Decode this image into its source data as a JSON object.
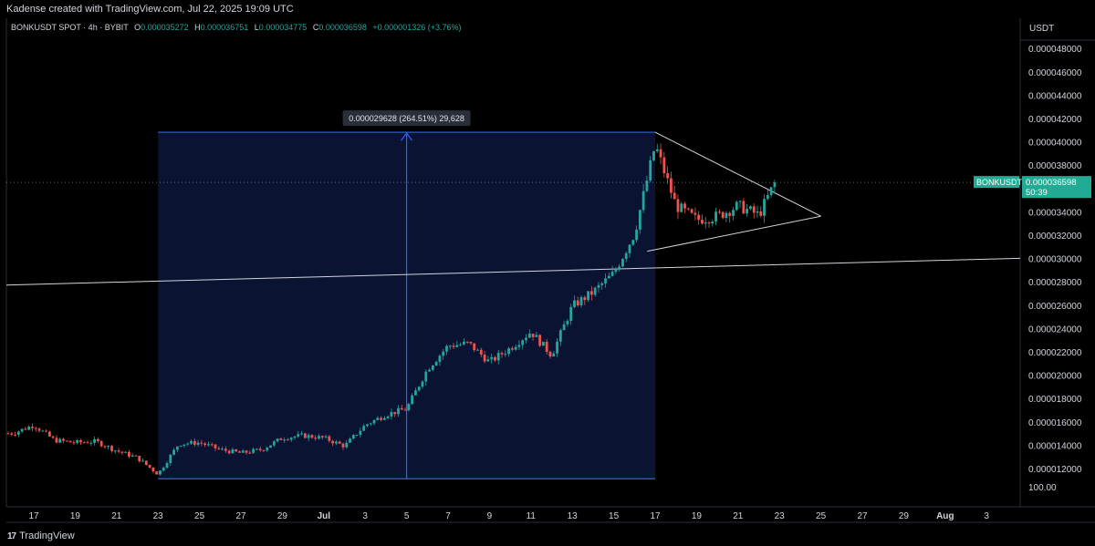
{
  "header": {
    "caption": "Kadense created with TradingView.com, Jul 22, 2025 19:09 UTC",
    "symbol": "BONKUSDT SPOT · 4h · BYBIT",
    "open_label": "O",
    "open": "0.000035272",
    "high_label": "H",
    "high": "0.000036751",
    "low_label": "L",
    "low": "0.000034775",
    "close_label": "C",
    "close": "0.000036598",
    "change": "+0.000001326 (+3.76%)"
  },
  "footer": {
    "brand": "TradingView",
    "brand_mark": "17"
  },
  "colors": {
    "up": "#26a69a",
    "down": "#ef5350",
    "range_fill": "#0b1332",
    "range_line": "#2962ff",
    "badge": "#22ab94"
  },
  "chart_data": {
    "type": "candlestick",
    "currency": "USDT",
    "ylim": [
      1e-05,
      5e-05
    ],
    "y_ticks": [
      "0.000012000",
      "0.000014000",
      "0.000016000",
      "0.000018000",
      "0.000020000",
      "0.000022000",
      "0.000024000",
      "0.000026000",
      "0.000028000",
      "0.000030000",
      "0.000032000",
      "0.000034000",
      "0.000036000",
      "0.000038000",
      "0.000040000",
      "0.000042000",
      "0.000044000",
      "0.000046000",
      "0.000048000"
    ],
    "x_ticks": [
      "17",
      "19",
      "21",
      "23",
      "25",
      "27",
      "29",
      "Jul",
      "3",
      "5",
      "7",
      "9",
      "11",
      "13",
      "15",
      "17",
      "19",
      "21",
      "23",
      "25",
      "27",
      "29",
      "Aug",
      "3"
    ],
    "extra_label": "100.00",
    "last_price": {
      "symbol": "BONKUSDT",
      "price": "0.000036598",
      "countdown": "50:39",
      "value": 3.6598e-05
    },
    "measure": {
      "label": "0.000029628 (264.51%) 29,628",
      "x_start": "Jun 23",
      "x_end": "Jul 17",
      "y_low": 1.12e-05,
      "y_high": 4.09e-05
    },
    "trendline": {
      "from": 2.78e-05,
      "to": 3.01e-05
    },
    "triangle": {
      "upper_from": 4.09e-05,
      "lower_from": 3.07e-05,
      "apex": 3.37e-05
    },
    "price_path": [
      {
        "date": "Jun 16",
        "price": 1.51e-05
      },
      {
        "date": "Jun 17",
        "price": 1.58e-05
      },
      {
        "date": "Jun 18",
        "price": 1.45e-05
      },
      {
        "date": "Jun 19",
        "price": 1.43e-05
      },
      {
        "date": "Jun 20",
        "price": 1.44e-05
      },
      {
        "date": "Jun 21",
        "price": 1.36e-05
      },
      {
        "date": "Jun 22",
        "price": 1.3e-05
      },
      {
        "date": "Jun 23",
        "price": 1.16e-05
      },
      {
        "date": "Jun 24",
        "price": 1.42e-05
      },
      {
        "date": "Jun 25",
        "price": 1.43e-05
      },
      {
        "date": "Jun 26",
        "price": 1.37e-05
      },
      {
        "date": "Jun 27",
        "price": 1.34e-05
      },
      {
        "date": "Jun 28",
        "price": 1.37e-05
      },
      {
        "date": "Jun 29",
        "price": 1.47e-05
      },
      {
        "date": "Jun 30",
        "price": 1.49e-05
      },
      {
        "date": "Jul 1",
        "price": 1.47e-05
      },
      {
        "date": "Jul 2",
        "price": 1.4e-05
      },
      {
        "date": "Jul 3",
        "price": 1.58e-05
      },
      {
        "date": "Jul 4",
        "price": 1.67e-05
      },
      {
        "date": "Jul 5",
        "price": 1.72e-05
      },
      {
        "date": "Jul 6",
        "price": 2.06e-05
      },
      {
        "date": "Jul 7",
        "price": 2.26e-05
      },
      {
        "date": "Jul 8",
        "price": 2.28e-05
      },
      {
        "date": "Jul 9",
        "price": 2.12e-05
      },
      {
        "date": "Jul 10",
        "price": 2.24e-05
      },
      {
        "date": "Jul 11",
        "price": 2.38e-05
      },
      {
        "date": "Jul 12",
        "price": 2.18e-05
      },
      {
        "date": "Jul 13",
        "price": 2.6e-05
      },
      {
        "date": "Jul 14",
        "price": 2.72e-05
      },
      {
        "date": "Jul 15",
        "price": 2.88e-05
      },
      {
        "date": "Jul 16",
        "price": 3.22e-05
      },
      {
        "date": "Jul 17",
        "price": 3.98e-05
      },
      {
        "date": "Jul 18",
        "price": 3.46e-05
      },
      {
        "date": "Jul 19",
        "price": 3.34e-05
      },
      {
        "date": "Jul 20",
        "price": 3.37e-05
      },
      {
        "date": "Jul 21",
        "price": 3.46e-05
      },
      {
        "date": "Jul 22",
        "price": 3.38e-05
      },
      {
        "date": "Jul 22 19:00",
        "price": 3.66e-05
      }
    ]
  }
}
